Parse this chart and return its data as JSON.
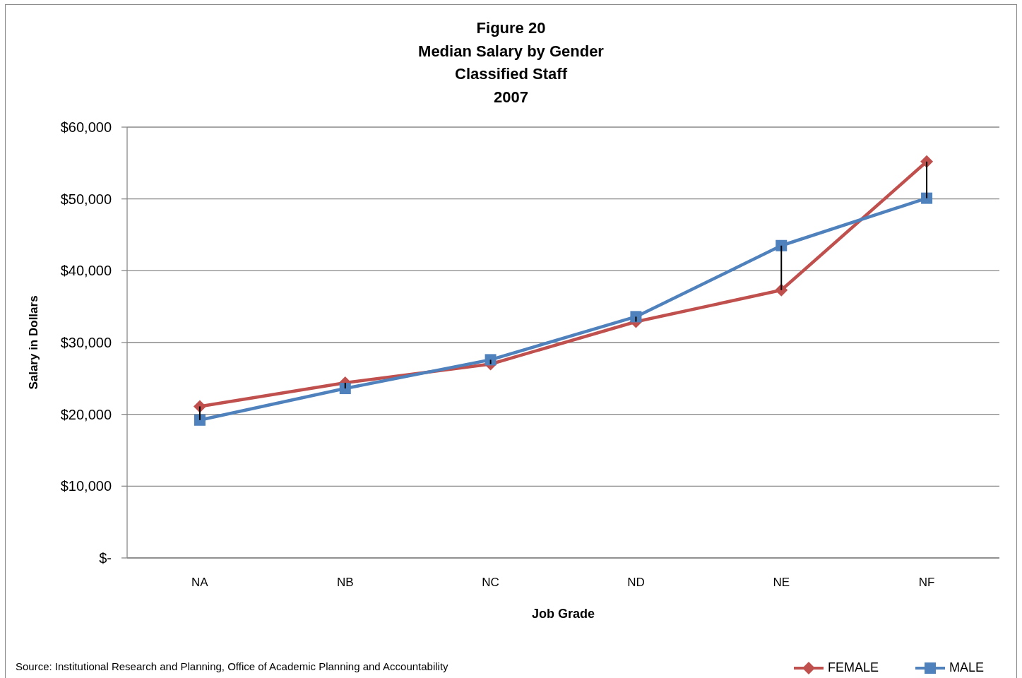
{
  "chart_data": {
    "type": "line",
    "title": "Figure 20\nMedian Salary by Gender\nClassified Staff\n2007",
    "xlabel": "Job Grade",
    "ylabel": "Salary in Dollars",
    "categories": [
      "NA",
      "NB",
      "NC",
      "ND",
      "NE",
      "NF"
    ],
    "series": [
      {
        "name": "FEMALE",
        "color": "#c0504d",
        "marker": "diamond",
        "values": [
          21100,
          24400,
          27000,
          32900,
          37300,
          55200
        ]
      },
      {
        "name": "MALE",
        "color": "#4f81bd",
        "marker": "square",
        "values": [
          19200,
          23600,
          27600,
          33600,
          43500,
          50100
        ]
      }
    ],
    "ylim": [
      0,
      60000
    ],
    "yticks": [
      {
        "value": 0,
        "label": "$-"
      },
      {
        "value": 10000,
        "label": "$10,000"
      },
      {
        "value": 20000,
        "label": "$20,000"
      },
      {
        "value": 30000,
        "label": "$30,000"
      },
      {
        "value": 40000,
        "label": "$40,000"
      },
      {
        "value": 50000,
        "label": "$50,000"
      },
      {
        "value": 60000,
        "label": "$60,000"
      }
    ],
    "grid": "y",
    "legend": "bottom right",
    "annotations": [
      "Source: Institutional Research and Planning, Office of Academic Planning and Accountability"
    ]
  }
}
